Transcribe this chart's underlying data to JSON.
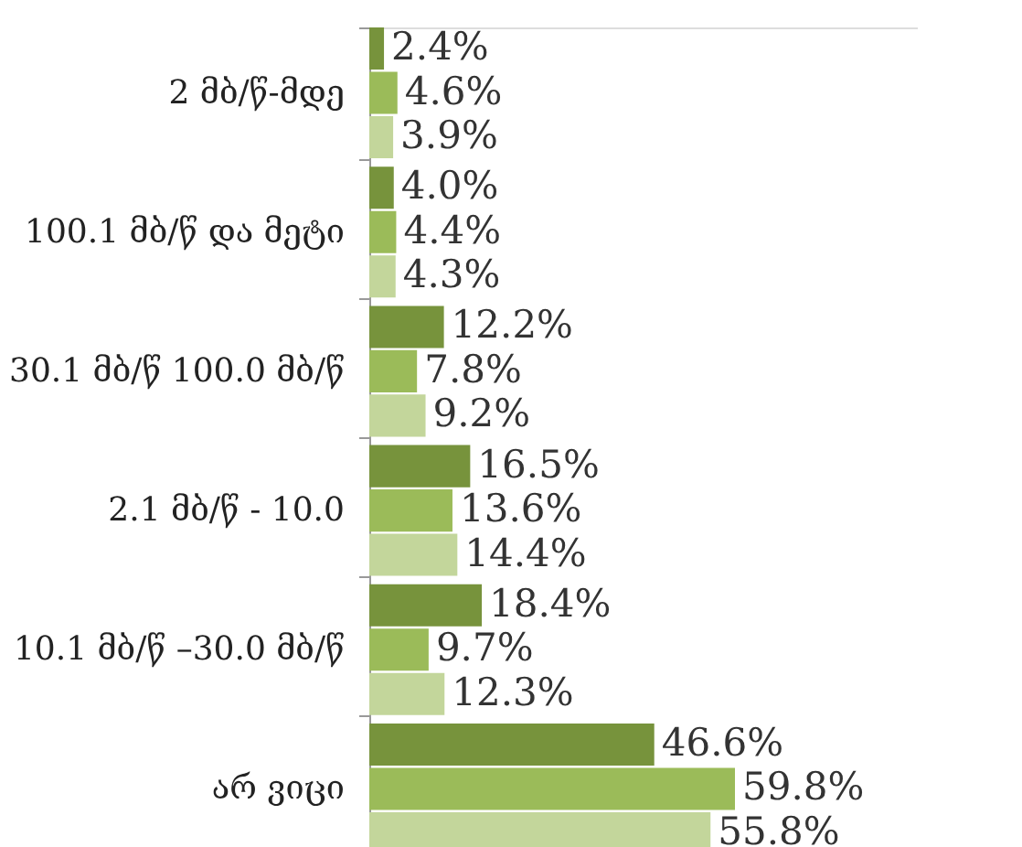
{
  "chart_data": {
    "type": "bar",
    "orientation": "horizontal",
    "grid": false,
    "categories": [
      "2 მბ/წ-მდე",
      "100.1 მბ/წ და მეტი",
      "30.1 მბ/წ 100.0 მბ/წ",
      "2.1 მბ/წ - 10.0",
      "10.1 მბ/წ –30.0 მბ/წ",
      "არ ვიცი"
    ],
    "series": [
      {
        "color": "#77933c",
        "values": [
          2.4,
          4.0,
          12.2,
          16.5,
          18.4,
          46.6
        ],
        "value_labels": [
          "2.4%",
          "4.0%",
          "12.2%",
          "16.5%",
          "18.4%",
          "46.6%"
        ]
      },
      {
        "color": "#9bbb59",
        "values": [
          4.6,
          4.4,
          7.8,
          13.6,
          9.7,
          59.8
        ],
        "value_labels": [
          "4.6%",
          "4.4%",
          "7.8%",
          "13.6%",
          "9.7%",
          "59.8%"
        ]
      },
      {
        "color": "#c3d69b",
        "values": [
          3.9,
          4.3,
          9.2,
          14.4,
          12.3,
          55.8
        ],
        "value_labels": [
          "3.9%",
          "4.3%",
          "9.2%",
          "14.4%",
          "12.3%",
          "55.8%"
        ]
      }
    ]
  }
}
